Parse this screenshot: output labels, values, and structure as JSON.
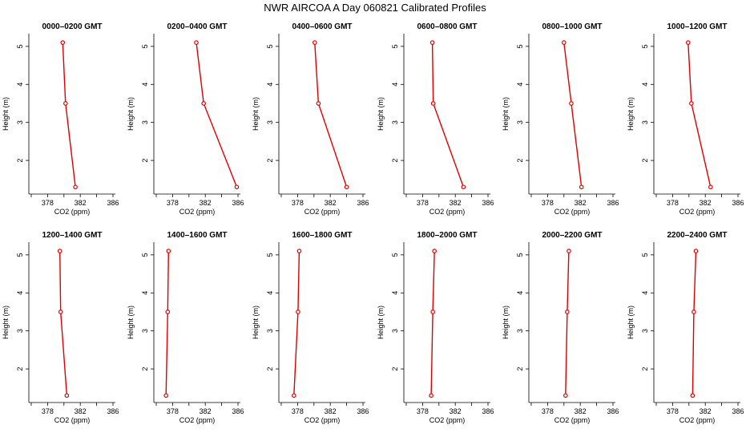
{
  "chart_data": {
    "type": "line",
    "title": "NWR AIRCOA A  Day 060821  Calibrated Profiles",
    "xlabel": "CO2 (ppm)",
    "ylabel": "Height (m)",
    "xlim": [
      376,
      386
    ],
    "ylim": [
      1.2,
      5.25
    ],
    "x_ticks": [
      376,
      378,
      380,
      382,
      384,
      386
    ],
    "x_tick_labels": [
      "378",
      "382",
      "386"
    ],
    "y_ticks": [
      2,
      3,
      4,
      5
    ],
    "y_tick_labels": [
      "2",
      "3",
      "4",
      "5"
    ],
    "grid": false,
    "series_color": "#dd0000",
    "heights": [
      5.1,
      3.5,
      1.3
    ],
    "panels": [
      {
        "title": "0000–0200 GMT",
        "co2": [
          379.85,
          380.2,
          381.4
        ]
      },
      {
        "title": "0200–0400 GMT",
        "co2": [
          380.9,
          381.8,
          385.85
        ]
      },
      {
        "title": "0400–0600 GMT",
        "co2": [
          380.1,
          380.55,
          384.0
        ]
      },
      {
        "title": "0600–0800 GMT",
        "co2": [
          379.2,
          379.3,
          383.0
        ]
      },
      {
        "title": "0800–1000 GMT",
        "co2": [
          380.0,
          380.9,
          382.15
        ]
      },
      {
        "title": "1000–1200 GMT",
        "co2": [
          379.9,
          380.3,
          382.65
        ]
      },
      {
        "title": "1200–1400 GMT",
        "co2": [
          379.5,
          379.6,
          380.35
        ]
      },
      {
        "title": "1400–1600 GMT",
        "co2": [
          377.5,
          377.4,
          377.2
        ]
      },
      {
        "title": "1600–1800 GMT",
        "co2": [
          378.2,
          378.05,
          377.55
        ]
      },
      {
        "title": "1800–2000 GMT",
        "co2": [
          379.45,
          379.25,
          379.05
        ]
      },
      {
        "title": "2000–2200 GMT",
        "co2": [
          380.6,
          380.4,
          380.2
        ]
      },
      {
        "title": "2200–2400 GMT",
        "co2": [
          380.85,
          380.6,
          380.45
        ]
      }
    ]
  }
}
